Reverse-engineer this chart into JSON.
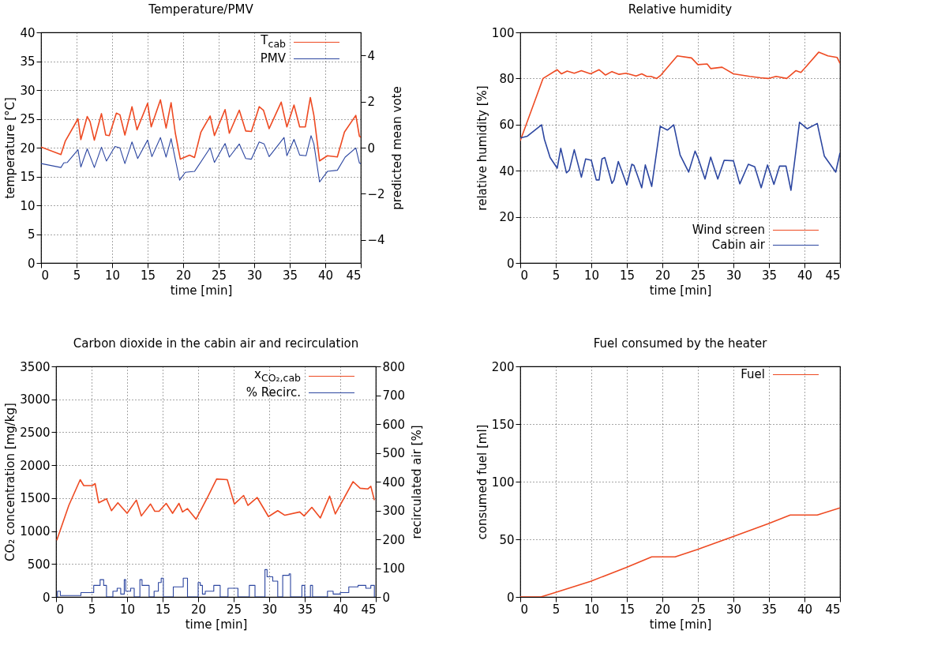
{
  "chart_data": [
    {
      "type": "line",
      "title": "Temperature/PMV",
      "xlabel": "time [min]",
      "ylabel": "temperature [°C]",
      "y2label": "predicted mean vote",
      "xlim": [
        0,
        45
      ],
      "xticks": [
        0,
        5,
        10,
        15,
        20,
        25,
        30,
        35,
        40,
        45
      ],
      "ylim": [
        0,
        40
      ],
      "yticks": [
        0,
        5,
        10,
        15,
        20,
        25,
        30,
        35,
        40
      ],
      "y2lim": [
        -5,
        5
      ],
      "y2ticks": [
        -4,
        -2,
        0,
        2,
        4
      ],
      "grid": true,
      "legend": "top right",
      "series": [
        {
          "name": "T$_{cab}$",
          "color": "#ee4a22",
          "x": [
            0,
            2.8,
            3.4,
            5.2,
            5.6,
            6.5,
            6.9,
            7.5,
            8.5,
            9.1,
            9.6,
            10.6,
            11.1,
            11.8,
            12.8,
            13.5,
            15,
            15.5,
            16.8,
            17.6,
            18.3,
            18.9,
            19.6,
            20.9,
            21.6,
            22.5,
            23.8,
            24.4,
            25.9,
            26.5,
            27.9,
            28.8,
            29.6,
            30.7,
            31.3,
            32.1,
            33.8,
            34.6,
            35.6,
            36.4,
            37.2,
            37.9,
            38.4,
            39.2,
            40.3,
            41.7,
            42.7,
            44.3,
            44.8,
            45
          ],
          "values": [
            20.1,
            18.8,
            21.1,
            25,
            21.4,
            25.4,
            24.5,
            21.3,
            25.9,
            22.2,
            22.1,
            26,
            25.7,
            22.2,
            27.1,
            23.1,
            27.7,
            23.6,
            28.3,
            23.4,
            27.8,
            22.5,
            18,
            18.7,
            18.3,
            22.7,
            25.5,
            22.1,
            26.6,
            22.5,
            26.5,
            22.9,
            22.8,
            27.1,
            26.5,
            23.3,
            27.9,
            23.6,
            27.4,
            23.6,
            23.6,
            28.7,
            25.6,
            17.7,
            18.6,
            18.4,
            22.7,
            25.6,
            22,
            21.8
          ]
        },
        {
          "name": "PMV",
          "color": "#2c46a0",
          "axis": "y2",
          "x": [
            0,
            2.8,
            3.2,
            3.7,
            5.2,
            5.6,
            6.5,
            7.5,
            8.5,
            9.2,
            10.4,
            11.1,
            11.8,
            12.8,
            13.6,
            15,
            15.6,
            16.8,
            17.6,
            18.3,
            19.5,
            20.3,
            21.6,
            23.8,
            24.4,
            25.9,
            26.5,
            27.9,
            28.8,
            29.6,
            30.7,
            31.4,
            32.1,
            34.2,
            34.6,
            35.6,
            36.4,
            37.3,
            38,
            38.4,
            39.2,
            40.3,
            41.7,
            42.8,
            44.3,
            44.8,
            45
          ],
          "values": [
            -0.69,
            -0.86,
            -0.66,
            -0.64,
            -0.09,
            -0.84,
            -0.05,
            -0.86,
            0.02,
            -0.58,
            0.05,
            -0.01,
            -0.69,
            0.25,
            -0.47,
            0.33,
            -0.39,
            0.44,
            -0.41,
            0.39,
            -1.41,
            -1.07,
            -1.03,
            -0.01,
            -0.64,
            0.18,
            -0.41,
            0.16,
            -0.47,
            -0.5,
            0.25,
            0.16,
            -0.39,
            0.44,
            -0.35,
            0.36,
            -0.32,
            -0.35,
            0.52,
            0.16,
            -1.49,
            -1.03,
            -0.98,
            -0.41,
            -0.01,
            -0.66,
            -0.7
          ]
        }
      ]
    },
    {
      "type": "line",
      "title": "Relative humidity",
      "xlabel": "time [min]",
      "ylabel": "relative humidity [%]",
      "xlim": [
        0,
        45
      ],
      "xticks": [
        0,
        5,
        10,
        15,
        20,
        25,
        30,
        35,
        40,
        45
      ],
      "ylim": [
        0,
        100
      ],
      "yticks": [
        0,
        20,
        40,
        60,
        80,
        100
      ],
      "grid": true,
      "legend": "bottom right",
      "series": [
        {
          "name": "Wind screen",
          "color": "#ee4a22",
          "x": [
            0,
            3.2,
            5.2,
            5.8,
            6.6,
            7.6,
            8.6,
            9.9,
            11.1,
            12,
            12.9,
            13.9,
            14.9,
            16.3,
            17.1,
            17.8,
            18.4,
            19.2,
            19.8,
            22.1,
            24.1,
            25,
            26.3,
            26.8,
            28.4,
            30,
            32.3,
            33.8,
            34.9,
            36,
            37.5,
            38.8,
            39.5,
            42,
            43.3,
            44.6,
            45
          ],
          "values": [
            53,
            80,
            83.8,
            82,
            83.2,
            82.3,
            83.4,
            82,
            83.8,
            81.5,
            83,
            81.8,
            82.3,
            81.1,
            82,
            80.9,
            80.9,
            80,
            81.5,
            89.8,
            88.9,
            86,
            86.3,
            84.3,
            84.9,
            82,
            80.9,
            80.3,
            80,
            80.9,
            80,
            83.4,
            82.6,
            91.4,
            89.8,
            89.1,
            86.6
          ]
        },
        {
          "name": "Cabin air",
          "color": "#2c46a0",
          "x": [
            0,
            1,
            3,
            3.4,
            4.2,
            5.2,
            5.7,
            6.5,
            6.9,
            7.6,
            8.6,
            9.2,
            10,
            10.7,
            11.1,
            11.5,
            11.9,
            12.9,
            13.2,
            13.8,
            15,
            15.7,
            16,
            17.1,
            17.6,
            18.5,
            19.7,
            20.7,
            21.6,
            22.5,
            23.7,
            24.6,
            25,
            26,
            26.8,
            27.8,
            28.7,
            30,
            30.9,
            32.1,
            33,
            33.9,
            34.8,
            35.7,
            36.5,
            37.4,
            38.1,
            39.3,
            40.4,
            41.8,
            42.8,
            44.4,
            45
          ],
          "values": [
            54.2,
            55,
            59.9,
            53.6,
            45.7,
            41.1,
            49.7,
            39.1,
            40.2,
            49.1,
            37.2,
            45.1,
            44.5,
            36,
            36,
            45.1,
            45.7,
            34.5,
            36,
            44,
            33.8,
            42.8,
            42.3,
            32.6,
            42.5,
            33.2,
            59.3,
            57.6,
            59.9,
            46.8,
            39.4,
            48.5,
            45.7,
            36.4,
            45.9,
            36.4,
            44.5,
            44.3,
            34.3,
            42.8,
            41.7,
            32.6,
            42.5,
            34.1,
            42,
            42,
            31.5,
            61,
            58.2,
            60.5,
            46.3,
            39.4,
            47.7
          ]
        }
      ]
    },
    {
      "type": "line",
      "title": "Carbon dioxide in the cabin air and recirculation",
      "xlabel": "time [min]",
      "ylabel": "CO₂ concentration [mg/kg]",
      "y2label": "recirculated air [%]",
      "xlim": [
        0,
        45
      ],
      "xticks": [
        0,
        5,
        10,
        15,
        20,
        25,
        30,
        35,
        40,
        45
      ],
      "ylim": [
        0,
        3500
      ],
      "yticks": [
        0,
        500,
        1000,
        1500,
        2000,
        2500,
        3000,
        3500
      ],
      "y2lim": [
        0,
        800
      ],
      "y2ticks": [
        0,
        100,
        200,
        300,
        400,
        500,
        600,
        700,
        800
      ],
      "grid": true,
      "legend": "top right",
      "series": [
        {
          "name": "x$_{CO₂,cab}$",
          "color": "#ee4a22",
          "x": [
            0.1,
            1.8,
            3.4,
            3.9,
            5.1,
            5.5,
            6,
            7.1,
            7.8,
            8.7,
            10,
            11.3,
            12,
            13.3,
            13.9,
            14.5,
            15.5,
            16.4,
            17.3,
            17.8,
            18.5,
            19.7,
            21.4,
            22.6,
            24.1,
            25.1,
            26.4,
            27,
            28.3,
            29.9,
            31.2,
            32.2,
            34.3,
            34.9,
            36,
            37.2,
            38.5,
            39.3,
            41.8,
            42.8,
            43.9,
            44.3,
            44.8
          ],
          "values": [
            860,
            1390,
            1780,
            1690,
            1690,
            1720,
            1430,
            1490,
            1310,
            1430,
            1270,
            1470,
            1230,
            1410,
            1300,
            1300,
            1420,
            1270,
            1420,
            1290,
            1340,
            1180,
            1530,
            1790,
            1780,
            1410,
            1540,
            1390,
            1510,
            1220,
            1310,
            1240,
            1290,
            1230,
            1360,
            1200,
            1530,
            1260,
            1750,
            1650,
            1640,
            1680,
            1470
          ]
        },
        {
          "name": "% Recirc.",
          "color": "#2c46a0",
          "type": "step",
          "axis": "y2",
          "x": [
            0,
            0.2,
            0.6,
            2.3,
            3.5,
            5,
            5.3,
            6.2,
            6.7,
            7.1,
            8,
            8.6,
            9.1,
            9.6,
            9.8,
            10.5,
            11,
            11.8,
            12.1,
            12.7,
            13.1,
            13.8,
            14.4,
            14.8,
            15.1,
            16.5,
            17.4,
            17.9,
            18.5,
            20,
            20.3,
            20.6,
            21,
            22.2,
            22.7,
            23.1,
            24.2,
            25.2,
            25.6,
            27.2,
            28,
            29.4,
            29.7,
            30.5,
            31.2,
            31.9,
            32.8,
            33,
            34.6,
            35,
            35.8,
            36.1,
            37.8,
            38.2,
            39,
            40,
            41.2,
            42.5,
            43.6,
            44.3,
            44.8
          ],
          "values": [
            0,
            20,
            5,
            5,
            15,
            15,
            40,
            60,
            40,
            0,
            20,
            30,
            10,
            60,
            20,
            30,
            0,
            60,
            40,
            40,
            0,
            20,
            50,
            65,
            0,
            35,
            35,
            65,
            0,
            50,
            40,
            10,
            20,
            40,
            40,
            0,
            30,
            30,
            0,
            40,
            0,
            95,
            70,
            55,
            0,
            75,
            80,
            0,
            40,
            0,
            40,
            0,
            0,
            20,
            10,
            15,
            35,
            40,
            30,
            40,
            0
          ]
        }
      ]
    },
    {
      "type": "line",
      "title": "Fuel consumed by the heater",
      "xlabel": "time [min]",
      "ylabel": "consumed fuel [ml]",
      "xlim": [
        0,
        45
      ],
      "xticks": [
        0,
        5,
        10,
        15,
        20,
        25,
        30,
        35,
        40,
        45
      ],
      "ylim": [
        0,
        200
      ],
      "yticks": [
        0,
        50,
        100,
        150,
        200
      ],
      "grid": true,
      "legend": "top right",
      "series": [
        {
          "name": "Fuel",
          "color": "#ee4a22",
          "x": [
            0,
            2.9,
            4.8,
            9.9,
            14.9,
            18.5,
            21.8,
            24.9,
            29.9,
            34.9,
            38,
            41.8,
            45
          ],
          "values": [
            0,
            0,
            3.6,
            13.6,
            25.5,
            34.8,
            34.8,
            41.1,
            52.3,
            63.6,
            71.1,
            71.1,
            77.3
          ]
        }
      ]
    }
  ]
}
